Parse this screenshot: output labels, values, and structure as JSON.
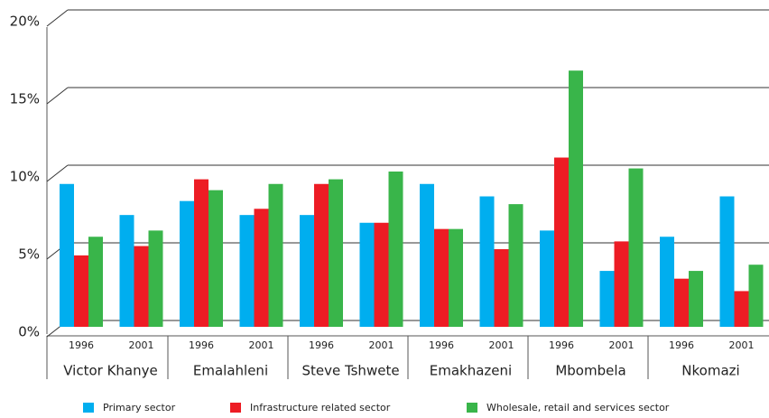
{
  "chart_data": {
    "type": "bar",
    "categories": [
      "1996",
      "2001",
      "1996",
      "2001",
      "1996",
      "2001",
      "1996",
      "2001",
      "1996",
      "2001",
      "1996",
      "2001"
    ],
    "groups": [
      "Victor Khanye",
      "Emalahleni",
      "Steve Tshwete",
      "Emakhazeni",
      "Mbombela",
      "Nkomazi"
    ],
    "series": [
      {
        "name": "Primary sector",
        "color": "#00aeef",
        "values": [
          9.2,
          7.2,
          8.1,
          7.2,
          7.2,
          6.7,
          9.2,
          8.4,
          6.2,
          3.6,
          5.8,
          8.4
        ]
      },
      {
        "name": "Infrastructure related sector",
        "color": "#ed1c24",
        "values": [
          4.6,
          5.2,
          9.5,
          7.6,
          9.2,
          6.7,
          6.3,
          5.0,
          10.9,
          5.5,
          3.1,
          2.3
        ]
      },
      {
        "name": "Wholesale, retail and services sector",
        "color": "#39b54a",
        "values": [
          5.8,
          6.2,
          8.8,
          9.2,
          9.5,
          10.0,
          6.3,
          7.9,
          16.5,
          10.2,
          3.6,
          4.0
        ]
      }
    ],
    "ylim": [
      0,
      20
    ],
    "yticks": [
      {
        "value": 0,
        "label": "0%"
      },
      {
        "value": 5,
        "label": "5%"
      },
      {
        "value": 10,
        "label": "10%"
      },
      {
        "value": 15,
        "label": "15%"
      },
      {
        "value": 20,
        "label": "20%"
      }
    ],
    "grid": true
  }
}
